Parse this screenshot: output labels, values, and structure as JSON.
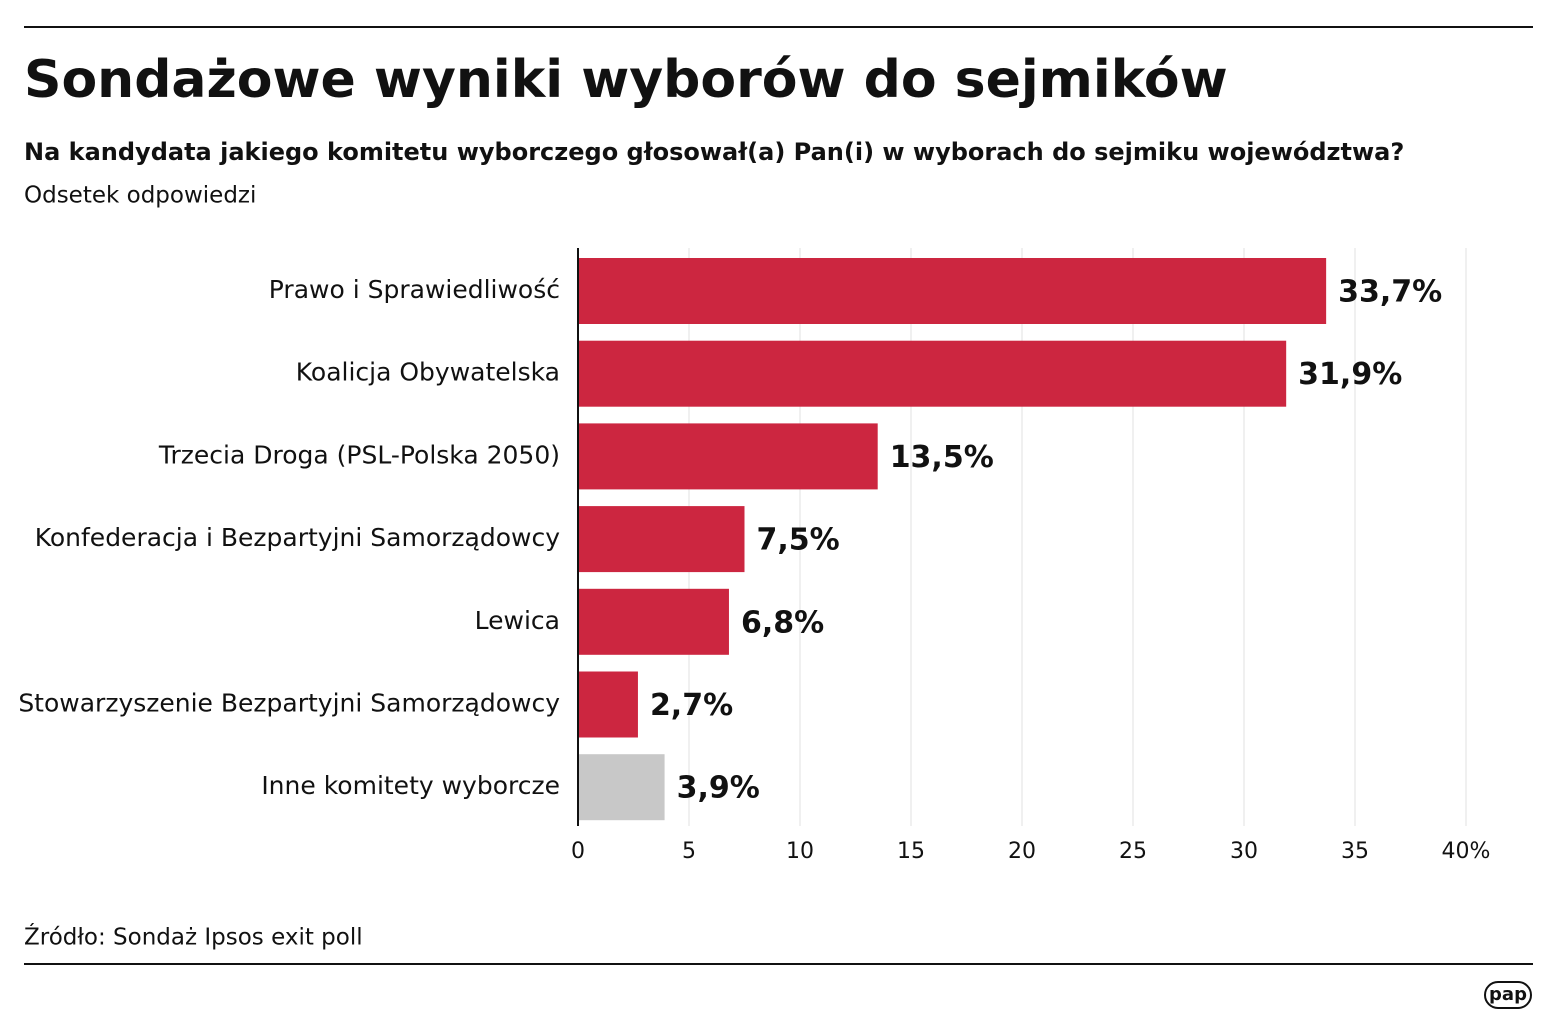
{
  "chart_data": {
    "type": "bar",
    "orientation": "horizontal",
    "title": "Sondażowe wyniki wyborów do sejmików",
    "subtitle": "Na kandydata jakiego komitetu wyborczego głosował(a) Pan(i) w wyborach do sejmiku województwa?",
    "axis_label": "Odsetek odpowiedzi",
    "categories": [
      "Prawo i Sprawiedliwość",
      "Koalicja Obywatelska",
      "Trzecia Droga (PSL-Polska 2050)",
      "Konfederacja i Bezpartyjni Samorządowcy",
      "Lewica",
      "Stowarzyszenie Bezpartyjni Samorządowcy",
      "Inne komitety wyborcze"
    ],
    "values": [
      33.7,
      31.9,
      13.5,
      7.5,
      6.8,
      2.7,
      3.9
    ],
    "value_labels": [
      "33,7%",
      "31,9%",
      "13,5%",
      "7,5%",
      "6,8%",
      "2,7%",
      "3,9%"
    ],
    "colors": [
      "#cc2640",
      "#cc2640",
      "#cc2640",
      "#cc2640",
      "#cc2640",
      "#cc2640",
      "#c8c8c8"
    ],
    "xlim": [
      0,
      40
    ],
    "xticks": [
      0,
      5,
      10,
      15,
      20,
      25,
      30,
      35,
      {
        "value": 40,
        "label": "40%"
      }
    ],
    "grid": true,
    "source": "Źródło: Sondaż Ipsos exit poll",
    "logo": "pap"
  }
}
